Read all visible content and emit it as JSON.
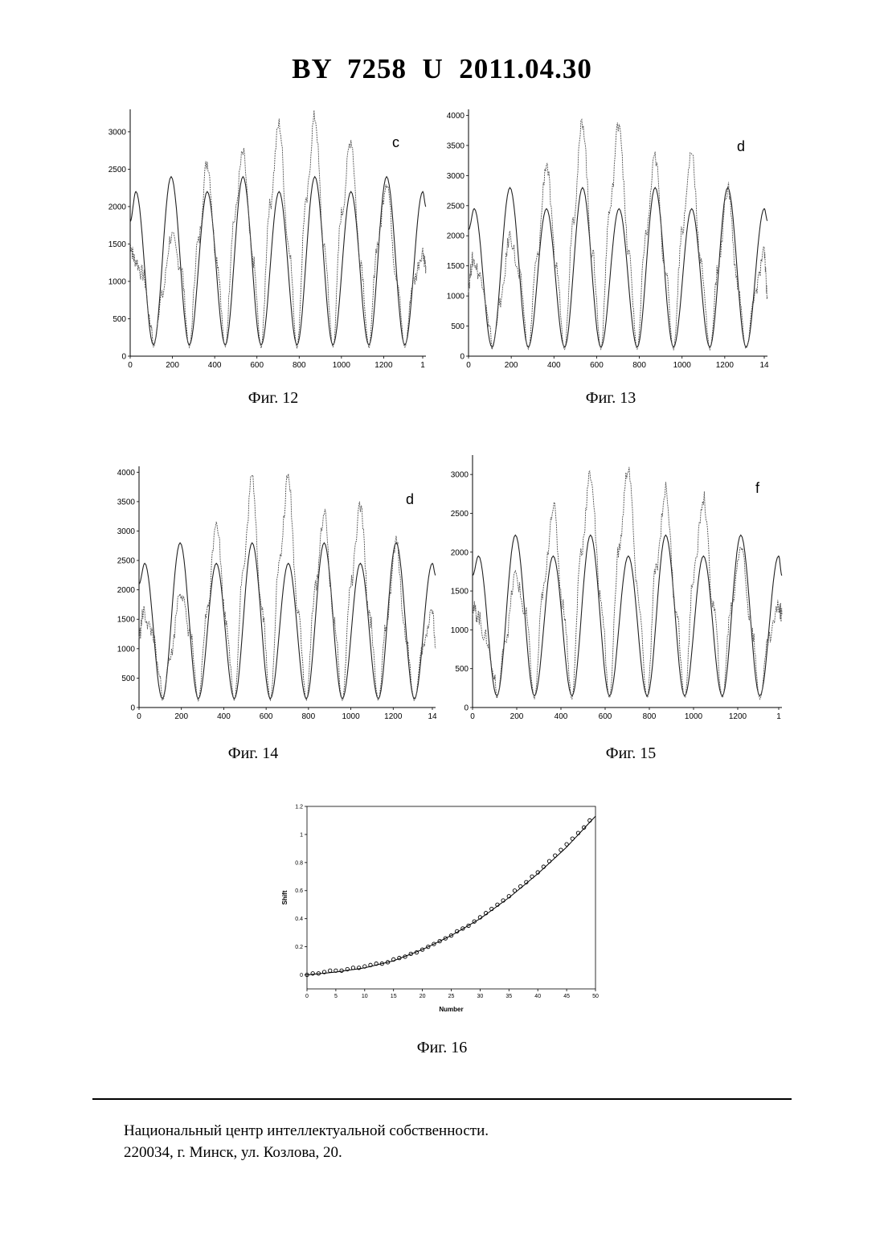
{
  "header": {
    "title": "BY  7258  U  2011.04.30"
  },
  "figures": [
    {
      "caption": "Фиг. 12",
      "chart_data": {
        "type": "line",
        "label": "c",
        "xlim": [
          0,
          1400
        ],
        "ylim": [
          0,
          3300
        ],
        "xticks": [
          0,
          200,
          400,
          600,
          800,
          1000,
          1200
        ],
        "xtick_labels": [
          "0",
          "200",
          "400",
          "600",
          "800",
          "1000",
          "1200",
          "1"
        ],
        "yticks": [
          0,
          500,
          1000,
          1500,
          2000,
          2500,
          3000
        ],
        "ytick_labels": [
          "0",
          "500",
          "1000",
          "1500",
          "2000",
          "2500",
          "3000"
        ],
        "series": [
          {
            "style": "solid-model",
            "x": [
              0,
              27,
              110,
              194,
              280,
              365,
              450,
              534,
              620,
              705,
              790,
              874,
              960,
              1045,
              1130,
              1214,
              1300,
              1385,
              1400
            ],
            "y": [
              1800,
              2200,
              150,
              2400,
              150,
              2200,
              150,
              2400,
              150,
              2200,
              150,
              2400,
              150,
              2200,
              150,
              2400,
              150,
              2200,
              2000
            ]
          },
          {
            "style": "noisy-measured",
            "x": [
              0,
              20,
              60,
              100,
              110,
              150,
              194,
              240,
              280,
              320,
              365,
              410,
              450,
              490,
              534,
              580,
              620,
              660,
              705,
              750,
              790,
              830,
              874,
              920,
              960,
              1000,
              1045,
              1090,
              1130,
              1170,
              1214,
              1260,
              1300,
              1340,
              1385,
              1400
            ],
            "y": [
              1500,
              1300,
              1100,
              400,
              120,
              800,
              1600,
              1200,
              120,
              1500,
              2600,
              1300,
              120,
              1800,
              2700,
              1300,
              120,
              2000,
              3100,
              1500,
              120,
              2000,
              3200,
              1400,
              120,
              1900,
              2900,
              1300,
              120,
              1500,
              2350,
              1100,
              120,
              1000,
              1400,
              1200
            ]
          }
        ]
      }
    },
    {
      "caption": "Фиг. 13",
      "chart_data": {
        "type": "line",
        "label": "d",
        "xlim": [
          0,
          1400
        ],
        "ylim": [
          0,
          4100
        ],
        "xticks": [
          0,
          200,
          400,
          600,
          800,
          1000,
          1200
        ],
        "xtick_labels": [
          "0",
          "200",
          "400",
          "600",
          "800",
          "1000",
          "1200",
          "14"
        ],
        "yticks": [
          0,
          500,
          1000,
          1500,
          2000,
          2500,
          3000,
          3500,
          4000
        ],
        "ytick_labels": [
          "0",
          "500",
          "1000",
          "1500",
          "2000",
          "2500",
          "3000",
          "3500",
          "4000"
        ],
        "series": [
          {
            "style": "solid-model",
            "x": [
              0,
              27,
              110,
              194,
              280,
              365,
              450,
              534,
              620,
              705,
              790,
              874,
              960,
              1045,
              1130,
              1214,
              1300,
              1385,
              1400
            ],
            "y": [
              2100,
              2450,
              150,
              2800,
              150,
              2450,
              150,
              2800,
              150,
              2450,
              150,
              2800,
              150,
              2450,
              150,
              2800,
              150,
              2450,
              2250
            ]
          },
          {
            "style": "noisy-measured",
            "x": [
              0,
              20,
              60,
              100,
              110,
              150,
              194,
              240,
              280,
              320,
              365,
              410,
              450,
              490,
              534,
              580,
              620,
              660,
              705,
              750,
              790,
              830,
              874,
              920,
              960,
              1000,
              1045,
              1090,
              1130,
              1170,
              1214,
              1260,
              1300,
              1340,
              1385,
              1400
            ],
            "y": [
              1200,
              1600,
              1300,
              500,
              120,
              900,
              2000,
              1300,
              120,
              1600,
              3200,
              1500,
              120,
              2300,
              3900,
              1700,
              120,
              2400,
              3900,
              1700,
              120,
              2000,
              3300,
              1500,
              120,
              2100,
              3400,
              1500,
              120,
              1500,
              2800,
              1200,
              120,
              1000,
              1700,
              1000
            ]
          }
        ]
      }
    },
    {
      "caption": "Фиг. 14",
      "chart_data": {
        "type": "line",
        "label": "d",
        "xlim": [
          0,
          1400
        ],
        "ylim": [
          0,
          4100
        ],
        "xticks": [
          0,
          200,
          400,
          600,
          800,
          1000,
          1200
        ],
        "xtick_labels": [
          "0",
          "200",
          "400",
          "600",
          "800",
          "1000",
          "1200",
          "14"
        ],
        "yticks": [
          0,
          500,
          1000,
          1500,
          2000,
          2500,
          3000,
          3500,
          4000
        ],
        "ytick_labels": [
          "0",
          "500",
          "1000",
          "1500",
          "2000",
          "2500",
          "3000",
          "3500",
          "4000"
        ],
        "series": [
          {
            "style": "solid-model",
            "x": [
              0,
              27,
              110,
              194,
              280,
              365,
              450,
              534,
              620,
              705,
              790,
              874,
              960,
              1045,
              1130,
              1214,
              1300,
              1385,
              1400
            ],
            "y": [
              2100,
              2450,
              150,
              2800,
              150,
              2450,
              150,
              2800,
              150,
              2450,
              150,
              2800,
              150,
              2450,
              150,
              2800,
              150,
              2450,
              2250
            ]
          },
          {
            "style": "noisy-measured",
            "x": [
              0,
              20,
              60,
              100,
              110,
              150,
              194,
              240,
              280,
              320,
              365,
              410,
              450,
              490,
              534,
              580,
              620,
              660,
              705,
              750,
              790,
              830,
              874,
              920,
              960,
              1000,
              1045,
              1090,
              1130,
              1170,
              1214,
              1260,
              1300,
              1340,
              1385,
              1400
            ],
            "y": [
              1200,
              1600,
              1300,
              500,
              120,
              900,
              2000,
              1300,
              120,
              1600,
              3200,
              1500,
              120,
              2300,
              3900,
              1700,
              120,
              2400,
              3900,
              1700,
              120,
              2000,
              3300,
              1500,
              120,
              2100,
              3400,
              1500,
              120,
              1500,
              2800,
              1200,
              120,
              1000,
              1700,
              1000
            ]
          }
        ]
      }
    },
    {
      "caption": "Фиг. 15",
      "chart_data": {
        "type": "line",
        "label": "f",
        "xlim": [
          0,
          1400
        ],
        "ylim": [
          0,
          3250
        ],
        "xticks": [
          0,
          200,
          400,
          600,
          800,
          1000,
          1200
        ],
        "xtick_labels": [
          "0",
          "200",
          "400",
          "600",
          "800",
          "1000",
          "1200",
          "1"
        ],
        "yticks": [
          0,
          500,
          1000,
          1500,
          2000,
          2500,
          3000
        ],
        "ytick_labels": [
          "0",
          "500",
          "1000",
          "1500",
          "2000",
          "2500",
          "3000"
        ],
        "series": [
          {
            "style": "solid-model",
            "x": [
              0,
              27,
              110,
              194,
              280,
              365,
              450,
              534,
              620,
              705,
              790,
              874,
              960,
              1045,
              1130,
              1214,
              1300,
              1385,
              1400
            ],
            "y": [
              1700,
              1950,
              150,
              2220,
              150,
              1950,
              150,
              2220,
              150,
              1950,
              150,
              2220,
              150,
              1950,
              150,
              2220,
              150,
              1950,
              1700
            ]
          },
          {
            "style": "noisy-measured",
            "x": [
              0,
              20,
              60,
              100,
              110,
              150,
              194,
              240,
              280,
              320,
              365,
              410,
              450,
              490,
              534,
              580,
              620,
              660,
              705,
              750,
              790,
              830,
              874,
              920,
              960,
              1000,
              1045,
              1090,
              1130,
              1170,
              1214,
              1260,
              1300,
              1340,
              1385,
              1400
            ],
            "y": [
              1300,
              1200,
              900,
              400,
              120,
              900,
              1700,
              1200,
              120,
              1500,
              2600,
              1300,
              120,
              2000,
              3000,
              1400,
              120,
              2000,
              3100,
              1400,
              120,
              1800,
              2800,
              1300,
              120,
              1700,
              2700,
              1300,
              120,
              1300,
              2100,
              1100,
              120,
              900,
              1300,
              1200
            ]
          }
        ]
      }
    },
    {
      "caption": "Фиг. 16",
      "chart_data": {
        "type": "scatter",
        "xlabel": "Number",
        "ylabel": "Shift",
        "xlim": [
          0,
          50
        ],
        "ylim": [
          -0.1,
          1.2
        ],
        "xticks": [
          0,
          5,
          10,
          15,
          20,
          25,
          30,
          35,
          40,
          45,
          50
        ],
        "xtick_labels": [
          "0",
          "5",
          "10",
          "15",
          "20",
          "25",
          "30",
          "35",
          "40",
          "45",
          "50"
        ],
        "yticks": [
          0,
          0.2,
          0.4,
          0.6,
          0.8,
          1,
          1.2
        ],
        "ytick_labels": [
          "0",
          "0.2",
          "0.4",
          "0.6",
          "0.8",
          "1",
          "1.2"
        ],
        "series": [
          {
            "style": "points",
            "x": [
              0,
              1,
              2,
              3,
              4,
              5,
              6,
              7,
              8,
              9,
              10,
              11,
              12,
              13,
              14,
              15,
              16,
              17,
              18,
              19,
              20,
              21,
              22,
              23,
              24,
              25,
              26,
              27,
              28,
              29,
              30,
              31,
              32,
              33,
              34,
              35,
              36,
              37,
              38,
              39,
              40,
              41,
              42,
              43,
              44,
              45,
              46,
              47,
              48,
              49
            ],
            "y": [
              0.0,
              0.01,
              0.01,
              0.02,
              0.03,
              0.03,
              0.03,
              0.04,
              0.05,
              0.05,
              0.06,
              0.07,
              0.08,
              0.08,
              0.09,
              0.11,
              0.12,
              0.13,
              0.15,
              0.16,
              0.18,
              0.2,
              0.22,
              0.24,
              0.26,
              0.28,
              0.31,
              0.33,
              0.35,
              0.38,
              0.41,
              0.44,
              0.47,
              0.5,
              0.53,
              0.56,
              0.6,
              0.63,
              0.66,
              0.7,
              0.73,
              0.77,
              0.81,
              0.85,
              0.89,
              0.93,
              0.97,
              1.01,
              1.05,
              1.1
            ]
          },
          {
            "style": "fitted-curve",
            "x": [
              0,
              5,
              10,
              15,
              20,
              25,
              30,
              35,
              40,
              45,
              50
            ],
            "y": [
              0.0,
              0.02,
              0.05,
              0.1,
              0.18,
              0.28,
              0.4,
              0.55,
              0.72,
              0.91,
              1.13
            ]
          }
        ]
      }
    }
  ],
  "footer": {
    "line1": "Национальный центр интеллектуальной собственности.",
    "line2": "220034, г. Минск, ул. Козлова, 20."
  }
}
